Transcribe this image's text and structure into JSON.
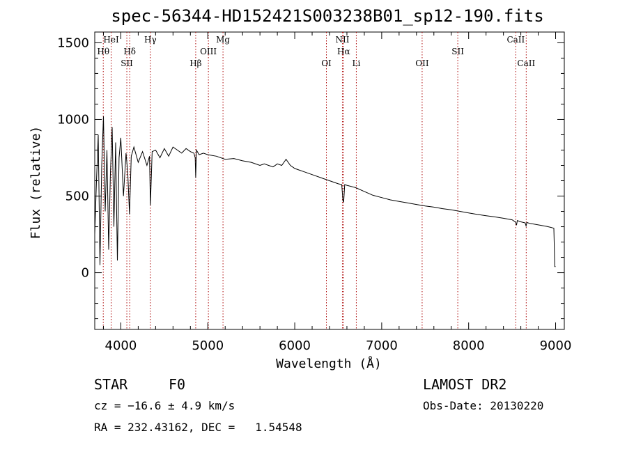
{
  "title": "spec-56344-HD152421S003238B01_sp12-190.fits",
  "info": {
    "class_label": "STAR",
    "subclass": "F0",
    "survey": "LAMOST DR2",
    "cz": "cz = −16.6 ± 4.9 km/s",
    "obs_date": "Obs-Date: 20130220",
    "radec": "RA = 232.43162, DEC =   1.54548"
  },
  "chart_data": {
    "type": "line",
    "xlabel": "Wavelength (Å)",
    "ylabel": "Flux (relative)",
    "xlim": [
      3700,
      9100
    ],
    "ylim": [
      -370,
      1570
    ],
    "x_ticks": [
      4000,
      5000,
      6000,
      7000,
      8000,
      9000
    ],
    "y_ticks": [
      0,
      500,
      1000,
      1500
    ],
    "grid": false,
    "line_color": "#000000",
    "marker_color": "#aa0000",
    "spectral_lines": [
      {
        "name": "Hθ",
        "wavelength": 3798,
        "row": 1
      },
      {
        "name": "HeI",
        "wavelength": 3889,
        "row": 0
      },
      {
        "name": "SII",
        "wavelength": 4069,
        "row": 2
      },
      {
        "name": "Hδ",
        "wavelength": 4102,
        "row": 1
      },
      {
        "name": "Hγ",
        "wavelength": 4340,
        "row": 0
      },
      {
        "name": "Hβ",
        "wavelength": 4861,
        "row": 2
      },
      {
        "name": "OIII",
        "wavelength": 5007,
        "row": 1
      },
      {
        "name": "Mg",
        "wavelength": 5175,
        "row": 0
      },
      {
        "name": "OI",
        "wavelength": 6364,
        "row": 2
      },
      {
        "name": "NII",
        "wavelength": 6548,
        "row": 0
      },
      {
        "name": "Hα",
        "wavelength": 6563,
        "row": 1
      },
      {
        "name": "Li",
        "wavelength": 6708,
        "row": 2
      },
      {
        "name": "OII",
        "wavelength": 7465,
        "row": 2
      },
      {
        "name": "SII",
        "wavelength": 7875,
        "row": 1
      },
      {
        "name": "CaII",
        "wavelength": 8542,
        "row": 0
      },
      {
        "name": "CaII",
        "wavelength": 8662,
        "row": 2
      }
    ],
    "spectrum": {
      "x": [
        3700,
        3720,
        3740,
        3760,
        3780,
        3800,
        3820,
        3840,
        3860,
        3880,
        3900,
        3920,
        3940,
        3960,
        3980,
        4000,
        4030,
        4060,
        4080,
        4100,
        4120,
        4150,
        4200,
        4250,
        4300,
        4330,
        4340,
        4360,
        4400,
        4450,
        4500,
        4550,
        4600,
        4650,
        4700,
        4750,
        4800,
        4840,
        4855,
        4861,
        4870,
        4900,
        4950,
        5000,
        5100,
        5200,
        5300,
        5400,
        5500,
        5600,
        5650,
        5700,
        5750,
        5800,
        5850,
        5900,
        5950,
        6000,
        6050,
        6100,
        6200,
        6300,
        6400,
        6500,
        6540,
        6555,
        6563,
        6575,
        6600,
        6700,
        6800,
        6900,
        7000,
        7100,
        7200,
        7300,
        7400,
        7500,
        7600,
        7700,
        7800,
        7900,
        8000,
        8100,
        8200,
        8300,
        8400,
        8500,
        8540,
        8550,
        8560,
        8600,
        8650,
        8660,
        8670,
        8700,
        8800,
        8900,
        8950,
        8980,
        8990,
        9000
      ],
      "y": [
        250,
        600,
        900,
        50,
        700,
        1020,
        400,
        800,
        150,
        650,
        950,
        300,
        850,
        80,
        750,
        880,
        500,
        780,
        650,
        380,
        760,
        820,
        720,
        790,
        700,
        760,
        440,
        790,
        800,
        750,
        810,
        760,
        820,
        800,
        780,
        810,
        790,
        780,
        750,
        620,
        800,
        770,
        780,
        770,
        760,
        740,
        745,
        730,
        720,
        700,
        710,
        700,
        690,
        710,
        700,
        740,
        700,
        680,
        670,
        660,
        640,
        620,
        600,
        580,
        575,
        470,
        460,
        575,
        570,
        555,
        530,
        505,
        490,
        475,
        465,
        455,
        445,
        435,
        428,
        418,
        410,
        400,
        390,
        380,
        372,
        364,
        355,
        345,
        330,
        310,
        340,
        332,
        325,
        305,
        328,
        322,
        312,
        302,
        295,
        290,
        40,
        40
      ]
    }
  }
}
